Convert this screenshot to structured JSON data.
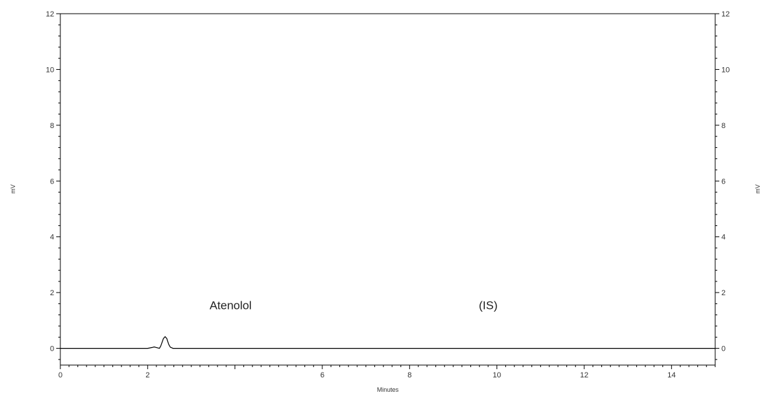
{
  "chart_data": {
    "type": "line",
    "title": "",
    "xlabel": "Minutes",
    "ylabel_left": "mV",
    "ylabel_right": "mV",
    "xlim": [
      0,
      15
    ],
    "ylim": [
      -0.6,
      12
    ],
    "x_ticks": [
      0,
      2,
      4,
      6,
      8,
      10,
      12,
      14
    ],
    "x_tick_labels": [
      "0",
      "2",
      "",
      "6",
      "8",
      "10",
      "12",
      "14"
    ],
    "y_ticks": [
      0,
      2,
      4,
      6,
      8,
      10,
      12
    ],
    "y_tick_labels": [
      "0",
      "2",
      "4",
      "6",
      "8",
      "10",
      "12"
    ],
    "grid": false,
    "annotations": [
      {
        "text": "Atenolol",
        "x": 3.9,
        "y": 1.4
      },
      {
        "text": "(IS)",
        "x": 9.8,
        "y": 1.4
      }
    ],
    "series": [
      {
        "color": "#000000",
        "x": [
          0,
          2.0,
          2.1,
          2.15,
          2.2,
          2.27,
          2.3,
          2.36,
          2.4,
          2.44,
          2.48,
          2.52,
          2.58,
          2.65,
          2.8,
          15
        ],
        "y": [
          0,
          0,
          0.03,
          0.05,
          0.03,
          0,
          0.08,
          0.35,
          0.42,
          0.35,
          0.15,
          0.04,
          0,
          0,
          0,
          0
        ]
      }
    ]
  }
}
